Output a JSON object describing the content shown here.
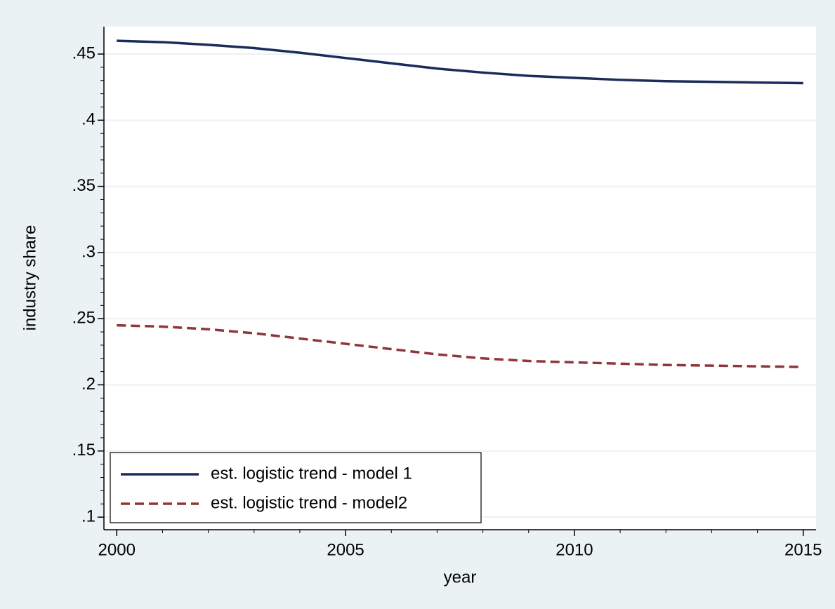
{
  "chart_data": {
    "type": "line",
    "x_label": "year",
    "y_label": "industry share",
    "x": [
      2000,
      2001,
      2002,
      2003,
      2004,
      2005,
      2006,
      2007,
      2008,
      2009,
      2010,
      2011,
      2012,
      2013,
      2014,
      2015
    ],
    "series": [
      {
        "name": "est. logistic trend - model 1",
        "color": "#1a2c5b",
        "dash": "solid",
        "values": [
          0.46,
          0.459,
          0.457,
          0.4545,
          0.451,
          0.447,
          0.443,
          0.439,
          0.436,
          0.4335,
          0.432,
          0.4305,
          0.4295,
          0.429,
          0.4285,
          0.428
        ]
      },
      {
        "name": "est. logistic trend - model2",
        "color": "#90353b",
        "dash": "dashed",
        "values": [
          0.245,
          0.244,
          0.242,
          0.239,
          0.235,
          0.231,
          0.227,
          0.223,
          0.22,
          0.218,
          0.217,
          0.216,
          0.215,
          0.2145,
          0.214,
          0.2135
        ]
      }
    ],
    "xlim": [
      1999.72,
      2015.28
    ],
    "ylim": [
      0.0905,
      0.4707
    ],
    "xticks": [
      2000,
      2005,
      2010,
      2015
    ],
    "xminorticks": [
      2001,
      2002,
      2003,
      2004,
      2006,
      2007,
      2008,
      2009,
      2011,
      2012,
      2013,
      2014
    ],
    "yticks": [
      {
        "value": 0.1,
        "label": ".1"
      },
      {
        "value": 0.15,
        "label": ".15"
      },
      {
        "value": 0.2,
        "label": ".2"
      },
      {
        "value": 0.25,
        "label": ".25"
      },
      {
        "value": 0.3,
        "label": ".3"
      },
      {
        "value": 0.35,
        "label": ".35"
      },
      {
        "value": 0.4,
        "label": ".4"
      },
      {
        "value": 0.45,
        "label": ".45"
      }
    ],
    "yminorticks": [
      0.11,
      0.12,
      0.13,
      0.14,
      0.16,
      0.17,
      0.18,
      0.19,
      0.21,
      0.22,
      0.23,
      0.24,
      0.26,
      0.27,
      0.28,
      0.29,
      0.31,
      0.32,
      0.33,
      0.34,
      0.36,
      0.37,
      0.38,
      0.39,
      0.41,
      0.42,
      0.43,
      0.44
    ],
    "grid": true,
    "legend_position": "lower-left"
  }
}
